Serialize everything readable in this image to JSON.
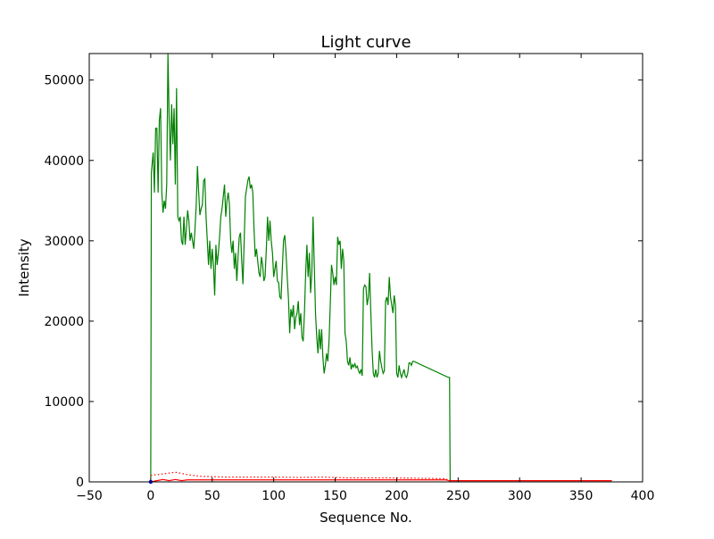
{
  "chart_data": {
    "type": "line",
    "title": "Light curve",
    "xlabel": "Sequence No.",
    "ylabel": "Intensity",
    "xlim": [
      -50,
      400
    ],
    "ylim": [
      0,
      53300
    ],
    "xticks": [
      -50,
      0,
      50,
      100,
      150,
      200,
      250,
      300,
      350,
      400
    ],
    "yticks": [
      0,
      10000,
      20000,
      30000,
      40000,
      50000
    ],
    "grid": false,
    "series": [
      {
        "color": "#008000",
        "style": "solid",
        "points": [
          [
            0,
            500
          ],
          [
            0.5,
            38500
          ],
          [
            2,
            41000
          ],
          [
            3,
            36000
          ],
          [
            4,
            44000
          ],
          [
            5,
            44000
          ],
          [
            6,
            36000
          ],
          [
            7,
            45000
          ],
          [
            8,
            46500
          ],
          [
            9,
            36000
          ],
          [
            10,
            33500
          ],
          [
            11,
            35000
          ],
          [
            12,
            34000
          ],
          [
            13,
            37000
          ],
          [
            14,
            53300
          ],
          [
            15,
            45000
          ],
          [
            16,
            40000
          ],
          [
            17,
            47000
          ],
          [
            18,
            42000
          ],
          [
            19,
            46500
          ],
          [
            20,
            37000
          ],
          [
            21,
            49000
          ],
          [
            22,
            33000
          ],
          [
            23,
            32500
          ],
          [
            24,
            33000
          ],
          [
            25,
            30000
          ],
          [
            26,
            29500
          ],
          [
            27,
            33000
          ],
          [
            28,
            29500
          ],
          [
            29,
            31500
          ],
          [
            30,
            33800
          ],
          [
            31,
            32500
          ],
          [
            32,
            30000
          ],
          [
            33,
            31000
          ],
          [
            34,
            30000
          ],
          [
            35,
            29000
          ],
          [
            36,
            31500
          ],
          [
            37,
            34500
          ],
          [
            38,
            39300
          ],
          [
            39,
            36000
          ],
          [
            40,
            33200
          ],
          [
            41,
            34000
          ],
          [
            42,
            34500
          ],
          [
            43,
            37500
          ],
          [
            44,
            37700
          ],
          [
            45,
            33000
          ],
          [
            46,
            30000
          ],
          [
            47,
            27000
          ],
          [
            48,
            30000
          ],
          [
            49,
            26500
          ],
          [
            50,
            29000
          ],
          [
            51,
            27000
          ],
          [
            52,
            23200
          ],
          [
            53,
            29500
          ],
          [
            54,
            27000
          ],
          [
            55,
            28500
          ],
          [
            56,
            30500
          ],
          [
            57,
            33000
          ],
          [
            58,
            34000
          ],
          [
            59,
            35500
          ],
          [
            60,
            37000
          ],
          [
            61,
            33000
          ],
          [
            62,
            35000
          ],
          [
            63,
            36000
          ],
          [
            64,
            34500
          ],
          [
            65,
            30000
          ],
          [
            66,
            28500
          ],
          [
            67,
            30000
          ],
          [
            68,
            26500
          ],
          [
            69,
            28500
          ],
          [
            70,
            25000
          ],
          [
            71,
            28000
          ],
          [
            72,
            30500
          ],
          [
            73,
            31000
          ],
          [
            74,
            27500
          ],
          [
            75,
            24600
          ],
          [
            76,
            30000
          ],
          [
            77,
            35500
          ],
          [
            78,
            36500
          ],
          [
            79,
            37500
          ],
          [
            80,
            38000
          ],
          [
            81,
            36500
          ],
          [
            82,
            37000
          ],
          [
            83,
            36000
          ],
          [
            84,
            31500
          ],
          [
            85,
            28000
          ],
          [
            86,
            29000
          ],
          [
            87,
            27500
          ],
          [
            88,
            26000
          ],
          [
            89,
            25500
          ],
          [
            90,
            28000
          ],
          [
            91,
            27000
          ],
          [
            92,
            25000
          ],
          [
            93,
            25500
          ],
          [
            94,
            29000
          ],
          [
            95,
            33000
          ],
          [
            96,
            30000
          ],
          [
            97,
            32500
          ],
          [
            98,
            30000
          ],
          [
            99,
            28500
          ],
          [
            100,
            25500
          ],
          [
            101,
            26500
          ],
          [
            102,
            27500
          ],
          [
            103,
            25000
          ],
          [
            104,
            24800
          ],
          [
            105,
            23000
          ],
          [
            106,
            22800
          ],
          [
            107,
            26500
          ],
          [
            108,
            30000
          ],
          [
            109,
            30700
          ],
          [
            110,
            28500
          ],
          [
            111,
            25500
          ],
          [
            112,
            22800
          ],
          [
            113,
            18500
          ],
          [
            114,
            21500
          ],
          [
            115,
            20500
          ],
          [
            116,
            22000
          ],
          [
            117,
            19000
          ],
          [
            118,
            20500
          ],
          [
            119,
            21000
          ],
          [
            120,
            22500
          ],
          [
            121,
            19500
          ],
          [
            122,
            21000
          ],
          [
            123,
            18000
          ],
          [
            124,
            17500
          ],
          [
            125,
            21000
          ],
          [
            126,
            26000
          ],
          [
            127,
            29500
          ],
          [
            128,
            25500
          ],
          [
            129,
            28500
          ],
          [
            130,
            23500
          ],
          [
            131,
            26000
          ],
          [
            132,
            33000
          ],
          [
            133,
            27000
          ],
          [
            134,
            21000
          ],
          [
            135,
            18000
          ],
          [
            136,
            16000
          ],
          [
            137,
            19000
          ],
          [
            138,
            16500
          ],
          [
            139,
            19000
          ],
          [
            140,
            15500
          ],
          [
            141,
            13500
          ],
          [
            142,
            14500
          ],
          [
            143,
            16000
          ],
          [
            144,
            15000
          ],
          [
            145,
            17500
          ],
          [
            146,
            22000
          ],
          [
            147,
            27000
          ],
          [
            148,
            26000
          ],
          [
            149,
            24500
          ],
          [
            150,
            25500
          ],
          [
            151,
            24500
          ],
          [
            152,
            30500
          ],
          [
            153,
            29500
          ],
          [
            154,
            30000
          ],
          [
            155,
            26500
          ],
          [
            156,
            29000
          ],
          [
            157,
            27500
          ],
          [
            158,
            18500
          ],
          [
            159,
            17500
          ],
          [
            160,
            15000
          ],
          [
            161,
            14500
          ],
          [
            162,
            15500
          ],
          [
            163,
            14000
          ],
          [
            164,
            14600
          ],
          [
            165,
            14300
          ],
          [
            166,
            14700
          ],
          [
            167,
            14200
          ],
          [
            168,
            14400
          ],
          [
            169,
            13800
          ],
          [
            170,
            13500
          ],
          [
            171,
            14000
          ],
          [
            172,
            13200
          ],
          [
            173,
            24000
          ],
          [
            174,
            24500
          ],
          [
            175,
            24300
          ],
          [
            176,
            22000
          ],
          [
            177,
            23000
          ],
          [
            178,
            26000
          ],
          [
            179,
            21000
          ],
          [
            180,
            16500
          ],
          [
            181,
            13500
          ],
          [
            182,
            13000
          ],
          [
            183,
            14000
          ],
          [
            184,
            13000
          ],
          [
            185,
            13500
          ],
          [
            186,
            16300
          ],
          [
            187,
            15000
          ],
          [
            188,
            14200
          ],
          [
            189,
            13500
          ],
          [
            190,
            13800
          ],
          [
            191,
            22500
          ],
          [
            192,
            23000
          ],
          [
            193,
            22000
          ],
          [
            194,
            25500
          ],
          [
            195,
            23000
          ],
          [
            196,
            22000
          ],
          [
            197,
            21000
          ],
          [
            198,
            23200
          ],
          [
            199,
            22000
          ],
          [
            200,
            13500
          ],
          [
            201,
            13000
          ],
          [
            202,
            14500
          ],
          [
            203,
            13500
          ],
          [
            204,
            13000
          ],
          [
            205,
            13500
          ],
          [
            206,
            14000
          ],
          [
            207,
            13200
          ],
          [
            208,
            13000
          ],
          [
            209,
            13500
          ],
          [
            210,
            14800
          ],
          [
            211,
            14800
          ],
          [
            212,
            14500
          ],
          [
            213,
            15000
          ],
          [
            214,
            15000
          ],
          [
            242,
            13000
          ],
          [
            243,
            13000
          ],
          [
            243.5,
            0
          ],
          [
            375,
            0
          ]
        ]
      },
      {
        "color": "#ff0000",
        "style": "solid",
        "points": [
          [
            0,
            0
          ],
          [
            5,
            150
          ],
          [
            10,
            300
          ],
          [
            15,
            150
          ],
          [
            20,
            300
          ],
          [
            25,
            150
          ],
          [
            30,
            250
          ],
          [
            40,
            250
          ],
          [
            50,
            250
          ],
          [
            60,
            250
          ],
          [
            70,
            250
          ],
          [
            80,
            250
          ],
          [
            90,
            250
          ],
          [
            100,
            250
          ],
          [
            110,
            250
          ],
          [
            120,
            250
          ],
          [
            130,
            250
          ],
          [
            140,
            250
          ],
          [
            150,
            250
          ],
          [
            160,
            250
          ],
          [
            170,
            250
          ],
          [
            180,
            250
          ],
          [
            190,
            250
          ],
          [
            200,
            250
          ],
          [
            210,
            250
          ],
          [
            220,
            250
          ],
          [
            230,
            250
          ],
          [
            240,
            250
          ],
          [
            243,
            150
          ],
          [
            375,
            150
          ]
        ]
      },
      {
        "color": "#ff0000",
        "style": "dotted",
        "points": [
          [
            0,
            800
          ],
          [
            10,
            1000
          ],
          [
            20,
            1200
          ],
          [
            30,
            900
          ],
          [
            40,
            700
          ],
          [
            60,
            600
          ],
          [
            80,
            600
          ],
          [
            100,
            600
          ],
          [
            120,
            550
          ],
          [
            140,
            600
          ],
          [
            160,
            500
          ],
          [
            180,
            500
          ],
          [
            200,
            500
          ],
          [
            220,
            450
          ],
          [
            240,
            400
          ],
          [
            243,
            0
          ],
          [
            375,
            0
          ]
        ]
      }
    ]
  }
}
